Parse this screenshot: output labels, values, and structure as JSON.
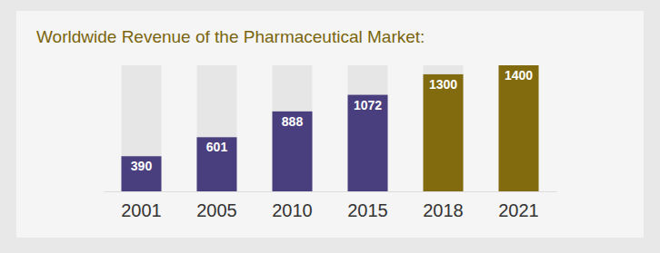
{
  "chart_data": {
    "type": "bar",
    "title": "Worldwide Revenue of the Pharmaceutical Market:",
    "categories": [
      "2001",
      "2005",
      "2010",
      "2015",
      "2018",
      "2021"
    ],
    "values": [
      390,
      601,
      888,
      1072,
      1300,
      1400
    ],
    "colors": [
      "#4a3f7e",
      "#4a3f7e",
      "#4a3f7e",
      "#4a3f7e",
      "#826b0f",
      "#826b0f"
    ],
    "ylim": [
      0,
      1400
    ],
    "data_labels": true,
    "tick_labels": "x"
  }
}
